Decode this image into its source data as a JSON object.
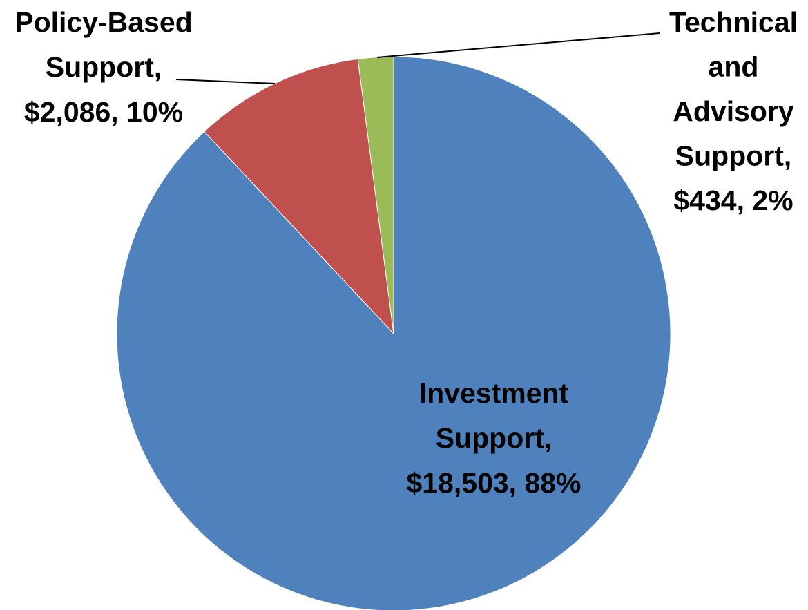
{
  "chart_data": {
    "type": "pie",
    "values": [
      18503,
      2086,
      434
    ],
    "value_labels": [
      [
        "Investment",
        "Support,",
        "$18,503, 88%"
      ],
      [
        "Policy-Based",
        "Support,",
        "$2,086, 10%"
      ],
      [
        "Technical",
        "and",
        "Advisory",
        "Support,",
        "$434, 2%"
      ]
    ],
    "colors": [
      "#4f81bd",
      "#c0504d",
      "#9bbb59"
    ]
  }
}
